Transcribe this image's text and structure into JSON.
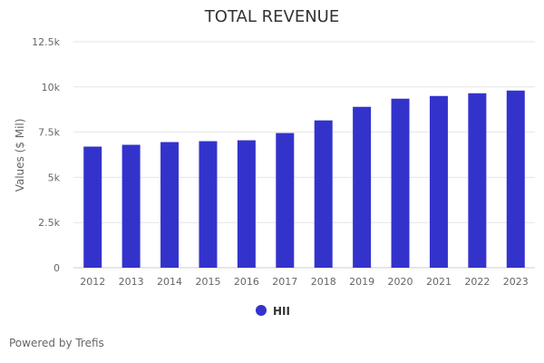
{
  "chart_data": {
    "type": "bar",
    "title": "TOTAL REVENUE",
    "ylabel": "Values ($ Mil)",
    "xlabel": "",
    "categories": [
      "2012",
      "2013",
      "2014",
      "2015",
      "2016",
      "2017",
      "2018",
      "2019",
      "2020",
      "2021",
      "2022",
      "2023"
    ],
    "series": [
      {
        "name": "HII",
        "values": [
          6700,
          6800,
          6950,
          7000,
          7050,
          7450,
          8150,
          8900,
          9350,
          9500,
          9650,
          9800
        ]
      }
    ],
    "ylim": [
      0,
      12500
    ],
    "yticks": [
      {
        "value": 0,
        "label": "0"
      },
      {
        "value": 2500,
        "label": "2.5k"
      },
      {
        "value": 5000,
        "label": "5k"
      },
      {
        "value": 7500,
        "label": "7.5k"
      },
      {
        "value": 10000,
        "label": "10k"
      },
      {
        "value": 12500,
        "label": "12.5k"
      }
    ],
    "grid": true,
    "legend_position": "bottom-center",
    "colors": {
      "series": "#3333cc",
      "grid": "#e6e6e6"
    }
  },
  "credit": "Powered by Trefis"
}
